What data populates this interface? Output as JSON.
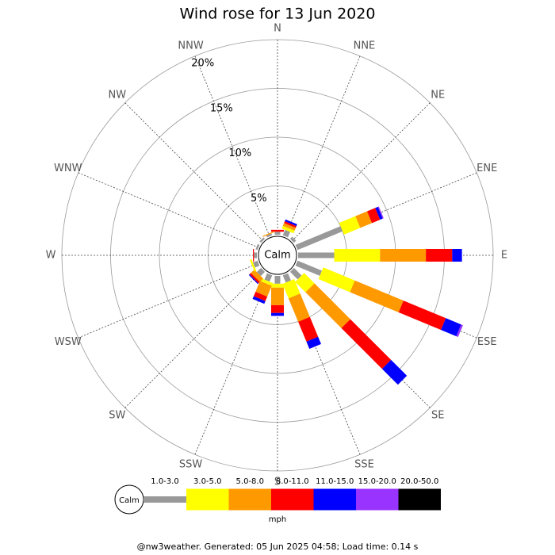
{
  "chart_data": {
    "type": "windrose",
    "title": "Wind rose for 13 Jun 2020",
    "directions": [
      "N",
      "NNE",
      "NE",
      "ENE",
      "E",
      "ESE",
      "SE",
      "SSE",
      "S",
      "SSW",
      "SW",
      "WSW",
      "W",
      "WNW",
      "NW",
      "NNW"
    ],
    "series": [
      {
        "name": "1.0-3.0",
        "color": "#999999",
        "values": [
          0.3,
          0.6,
          0.3,
          5.0,
          3.7,
          2.7,
          1.1,
          0.8,
          0.8,
          0.7,
          0.6,
          0.5,
          0.3,
          0.2,
          0.2,
          0.2
        ]
      },
      {
        "name": "3.0-5.0",
        "color": "#ffff00",
        "values": [
          0,
          0.3,
          0,
          1.8,
          4.7,
          3.5,
          1.5,
          1.6,
          0.4,
          0.3,
          0,
          0.2,
          0,
          0,
          0,
          0
        ]
      },
      {
        "name": "5.0-8.0",
        "color": "#ff9900",
        "values": [
          0,
          0.3,
          0,
          1.3,
          4.7,
          5.4,
          5.2,
          2.6,
          1.8,
          1.2,
          0.5,
          0,
          0,
          0,
          0,
          0.1
        ]
      },
      {
        "name": "8.0-11.0",
        "color": "#ff0000",
        "values": [
          0.2,
          0.2,
          0,
          0.9,
          2.7,
          4.7,
          5.9,
          2.2,
          0.8,
          0.5,
          0.2,
          0,
          0.1,
          0,
          0,
          0
        ]
      },
      {
        "name": "11.0-15.0",
        "color": "#0000ff",
        "values": [
          0,
          0.2,
          0,
          0.3,
          1.0,
          1.7,
          2.3,
          0.8,
          0.3,
          0.3,
          0.1,
          0,
          0,
          0,
          0,
          0
        ]
      },
      {
        "name": "15.0-20.0",
        "color": "#9933ff",
        "values": [
          0,
          0,
          0,
          0.1,
          0,
          0.2,
          0,
          0,
          0,
          0,
          0,
          0,
          0,
          0,
          0,
          0
        ]
      },
      {
        "name": "20.0-50.0",
        "color": "#000000",
        "values": [
          0,
          0,
          0,
          0,
          0,
          0,
          0,
          0,
          0,
          0,
          0,
          0,
          0,
          0,
          0,
          0
        ]
      }
    ],
    "rlim": [
      0,
      20
    ],
    "rticks": [
      {
        "value": 5,
        "label": "5%"
      },
      {
        "value": 10,
        "label": "10%"
      },
      {
        "value": 15,
        "label": "15%"
      },
      {
        "value": 20,
        "label": "20%"
      }
    ],
    "calm_label": "Calm",
    "unit_label": "mph"
  },
  "footer": "@nw3weather.  Generated: 05 Jun 2025 04:58; Load time: 0.14 s"
}
